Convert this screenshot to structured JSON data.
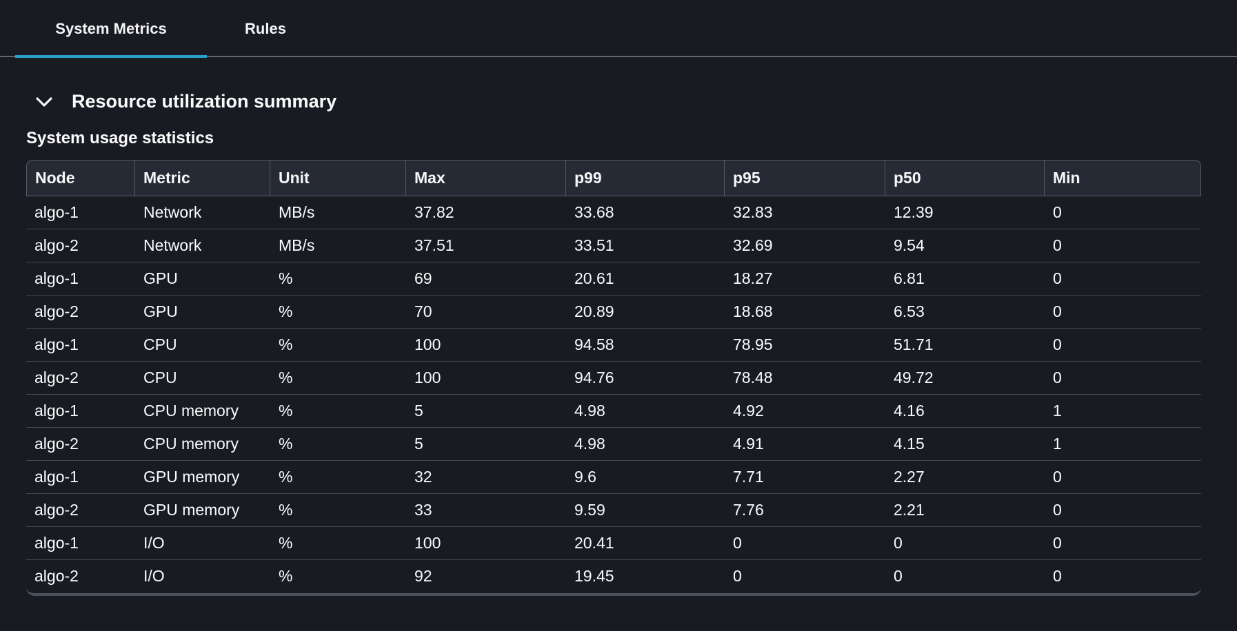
{
  "colors": {
    "accent_tab_underline": "#2ba0c9",
    "background": "#191b22",
    "table_header_background": "#262a34",
    "table_border": "#565b66",
    "row_divider": "#42474f"
  },
  "tabs": [
    {
      "label": "System Metrics",
      "active": true
    },
    {
      "label": "Rules",
      "active": false
    }
  ],
  "section": {
    "title": "Resource utilization summary",
    "collapsed": false
  },
  "table": {
    "caption": "System usage statistics",
    "columns": [
      "Node",
      "Metric",
      "Unit",
      "Max",
      "p99",
      "p95",
      "p50",
      "Min"
    ],
    "rows": [
      [
        "algo-1",
        "Network",
        "MB/s",
        "37.82",
        "33.68",
        "32.83",
        "12.39",
        "0"
      ],
      [
        "algo-2",
        "Network",
        "MB/s",
        "37.51",
        "33.51",
        "32.69",
        "9.54",
        "0"
      ],
      [
        "algo-1",
        "GPU",
        "%",
        "69",
        "20.61",
        "18.27",
        "6.81",
        "0"
      ],
      [
        "algo-2",
        "GPU",
        "%",
        "70",
        "20.89",
        "18.68",
        "6.53",
        "0"
      ],
      [
        "algo-1",
        "CPU",
        "%",
        "100",
        "94.58",
        "78.95",
        "51.71",
        "0"
      ],
      [
        "algo-2",
        "CPU",
        "%",
        "100",
        "94.76",
        "78.48",
        "49.72",
        "0"
      ],
      [
        "algo-1",
        "CPU memory",
        "%",
        "5",
        "4.98",
        "4.92",
        "4.16",
        "1"
      ],
      [
        "algo-2",
        "CPU memory",
        "%",
        "5",
        "4.98",
        "4.91",
        "4.15",
        "1"
      ],
      [
        "algo-1",
        "GPU memory",
        "%",
        "32",
        "9.6",
        "7.71",
        "2.27",
        "0"
      ],
      [
        "algo-2",
        "GPU memory",
        "%",
        "33",
        "9.59",
        "7.76",
        "2.21",
        "0"
      ],
      [
        "algo-1",
        "I/O",
        "%",
        "100",
        "20.41",
        "0",
        "0",
        "0"
      ],
      [
        "algo-2",
        "I/O",
        "%",
        "92",
        "19.45",
        "0",
        "0",
        "0"
      ]
    ]
  }
}
